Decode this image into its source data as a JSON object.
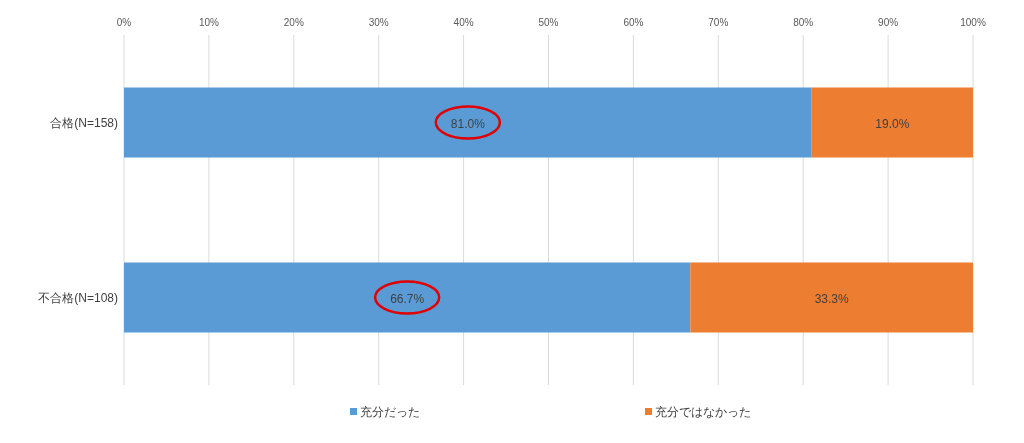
{
  "chart_data": {
    "type": "bar",
    "orientation": "horizontal",
    "stacked": true,
    "categories": [
      "合格(N=158)",
      "不合格(N=108)"
    ],
    "series": [
      {
        "name": "充分だった",
        "color": "#5b9bd5",
        "values": [
          81.0,
          66.7
        ],
        "value_labels": [
          "81.0%",
          "66.7%"
        ]
      },
      {
        "name": "充分ではなかった",
        "color": "#ed7d31",
        "values": [
          19.0,
          33.3
        ],
        "value_labels": [
          "19.0%",
          "33.3%"
        ]
      }
    ],
    "xlim": [
      0,
      100
    ],
    "xticks": [
      {
        "value": 0,
        "label": "0%"
      },
      {
        "value": 10,
        "label": "10%"
      },
      {
        "value": 20,
        "label": "20%"
      },
      {
        "value": 30,
        "label": "30%"
      },
      {
        "value": 40,
        "label": "40%"
      },
      {
        "value": 50,
        "label": "50%"
      },
      {
        "value": 60,
        "label": "60%"
      },
      {
        "value": 70,
        "label": "70%"
      },
      {
        "value": 80,
        "label": "80%"
      },
      {
        "value": 90,
        "label": "90%"
      },
      {
        "value": 100,
        "label": "100%"
      }
    ],
    "grid": "x",
    "legend": "bottom"
  }
}
